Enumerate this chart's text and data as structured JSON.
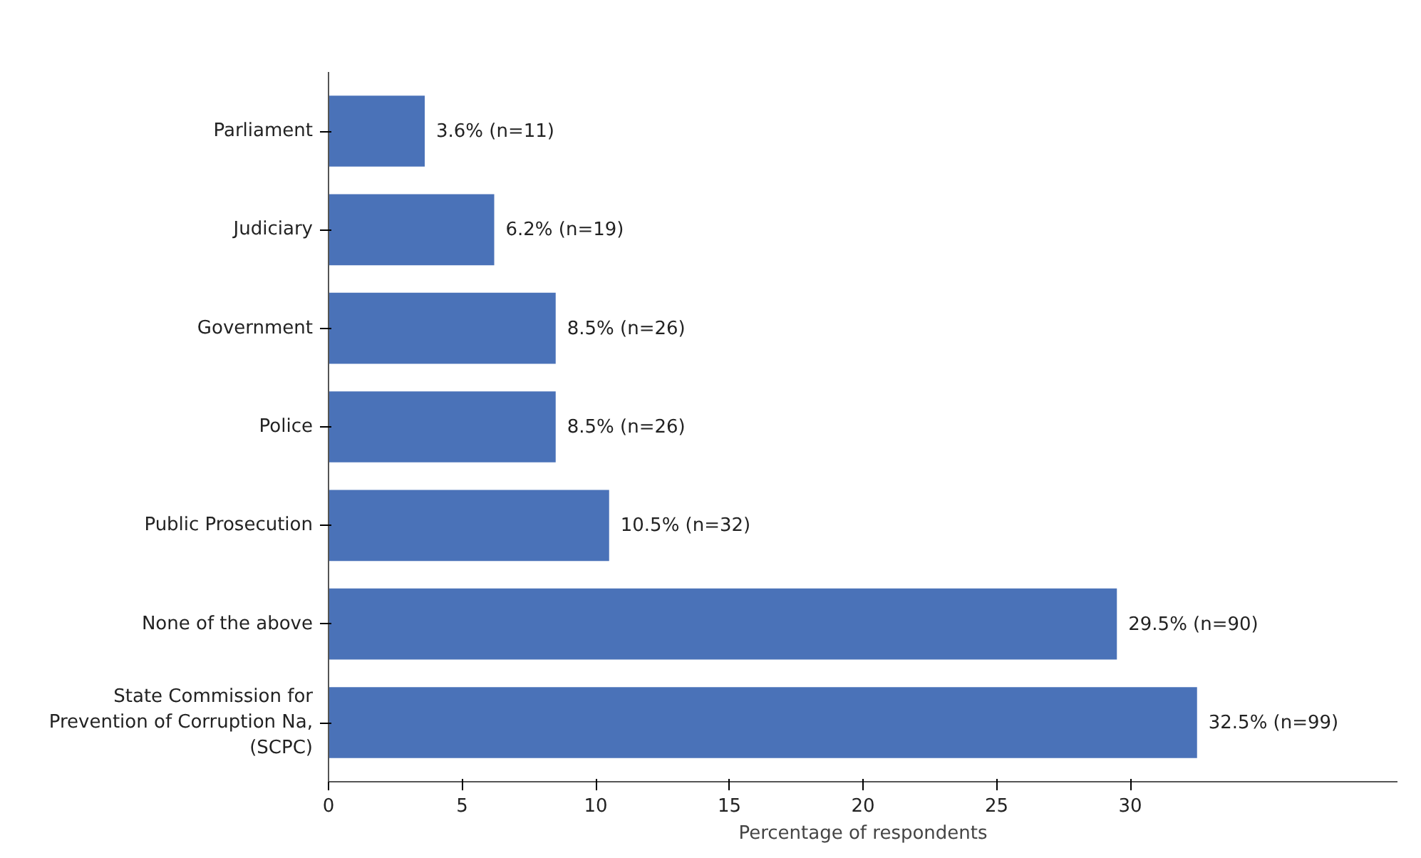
{
  "chart_data": {
    "type": "bar",
    "orientation": "horizontal",
    "categories": [
      "Parliament",
      "Judiciary",
      "Government",
      "Police",
      "Public Prosecution",
      "None of the above",
      "State Commission for\nPrevention of Corruption Na,\n(SCPC)"
    ],
    "values": [
      3.6,
      6.2,
      8.5,
      8.5,
      10.5,
      29.5,
      32.5
    ],
    "value_labels": [
      "3.6% (n=11)",
      "6.2% (n=19)",
      "8.5% (n=26)",
      "8.5% (n=26)",
      "10.5% (n=32)",
      "29.5% (n=90)",
      "32.5% (n=99)"
    ],
    "color": "#4a72b8",
    "xlabel": "Percentage of respondents",
    "xlim": [
      0,
      40
    ],
    "xticks": [
      0,
      5,
      10,
      15,
      20,
      25,
      30
    ],
    "grid": false
  }
}
